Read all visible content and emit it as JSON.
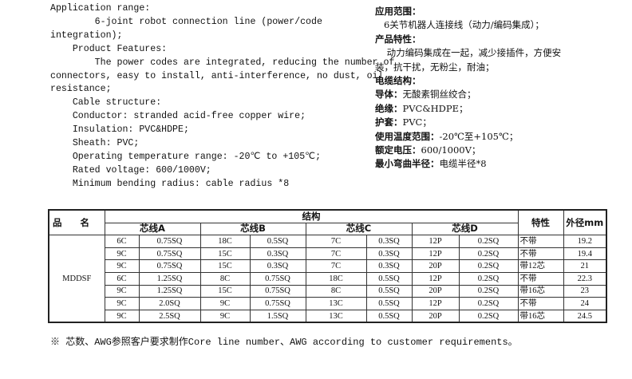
{
  "english": [
    "Application range:",
    "        6-joint robot connection line (power/code",
    "integration);",
    "    Product Features:",
    "        The power codes are integrated, reducing the number of",
    "connectors, easy to install, anti-interference, no dust, oil",
    "resistance;",
    "    Cable structure:",
    "    Conductor: stranded acid-free copper wire;",
    "    Insulation: PVC&HDPE;",
    "    Sheath: PVC;",
    "    Operating temperature range: -20℃ to +105℃;",
    "    Rated voltage: 600/1000V;",
    "    Minimum bending radius: cable radius *8"
  ],
  "chinese": [
    {
      "label": "应用范围：",
      "text": ""
    },
    {
      "label": "",
      "text": "   6关节机器人连接线（动力/编码集成）；"
    },
    {
      "label": "产品特性：",
      "text": ""
    },
    {
      "label": "",
      "text": "    动力编码集成在一起，减少接插件，方便安"
    },
    {
      "label": "",
      "text": "装，抗干扰，无粉尘，耐油；"
    },
    {
      "label": "电缆结构：",
      "text": ""
    },
    {
      "label": "导体：",
      "text": "无酸素铜丝绞合；"
    },
    {
      "label": "绝缘：",
      "text": "PVC&HDPE；"
    },
    {
      "label": "护套：",
      "text": "PVC；"
    },
    {
      "label": "使用温度范围：",
      "text": "-20℃至+105℃；"
    },
    {
      "label": "额定电压：",
      "text": "600/1000V；"
    },
    {
      "label": "最小弯曲半径：",
      "text": "电缆半径*8"
    }
  ],
  "table": {
    "product_header": "品　　名",
    "structure_header": "结构",
    "feature_header": "特性",
    "od_header": "外径mm",
    "core_headers": [
      "芯线A",
      "芯线B",
      "芯线C",
      "芯线D"
    ],
    "product": "MDDSF",
    "rows": [
      [
        "6C",
        "0.75SQ",
        "18C",
        "0.5SQ",
        "7C",
        "0.3SQ",
        "12P",
        "0.2SQ",
        "不带",
        "19.2"
      ],
      [
        "9C",
        "0.75SQ",
        "15C",
        "0.3SQ",
        "7C",
        "0.3SQ",
        "12P",
        "0.2SQ",
        "不带",
        "19.4"
      ],
      [
        "9C",
        "0.75SQ",
        "15C",
        "0.3SQ",
        "7C",
        "0.3SQ",
        "20P",
        "0.2SQ",
        "带12芯",
        "21"
      ],
      [
        "6C",
        "1.25SQ",
        "8C",
        "0.75SQ",
        "18C",
        "0.5SQ",
        "12P",
        "0.2SQ",
        "不带",
        "22.3"
      ],
      [
        "9C",
        "1.25SQ",
        "15C",
        "0.75SQ",
        "8C",
        "0.5SQ",
        "20P",
        "0.2SQ",
        "带16芯",
        "23"
      ],
      [
        "9C",
        "2.0SQ",
        "9C",
        "0.75SQ",
        "13C",
        "0.5SQ",
        "12P",
        "0.2SQ",
        "不带",
        "24"
      ],
      [
        "9C",
        "2.5SQ",
        "9C",
        "1.5SQ",
        "13C",
        "0.5SQ",
        "20P",
        "0.2SQ",
        "带16芯",
        "24.5"
      ]
    ]
  },
  "note": "※ 芯数、AWG参照客户要求制作Core line number、AWG according to customer requirements。"
}
